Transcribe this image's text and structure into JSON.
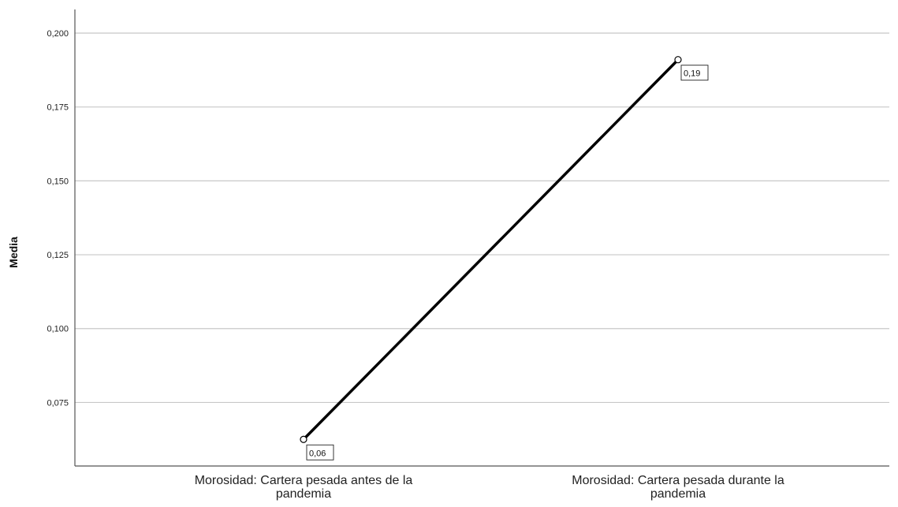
{
  "chart_data": {
    "type": "line",
    "title": "",
    "xlabel": "",
    "ylabel": "Media",
    "categories": [
      [
        "Morosidad: Cartera pesada antes de la",
        "pandemia"
      ],
      [
        "Morosidad: Cartera pesada durante la",
        "pandemia"
      ]
    ],
    "series": [
      {
        "values": [
          0.0625,
          0.191
        ],
        "data_labels": [
          "0,06",
          "0,19"
        ]
      }
    ],
    "yticks": [
      "0,075",
      "0,100",
      "0,125",
      "0,150",
      "0,175",
      "0,200"
    ],
    "ytick_values": [
      0.075,
      0.1,
      0.125,
      0.15,
      0.175,
      0.2
    ],
    "ylim": [
      0.0535,
      0.208
    ],
    "grid": true,
    "legend": "none",
    "colors": {
      "line": "#000000",
      "grid": "#c8c8c8",
      "axis": "#555555"
    }
  }
}
